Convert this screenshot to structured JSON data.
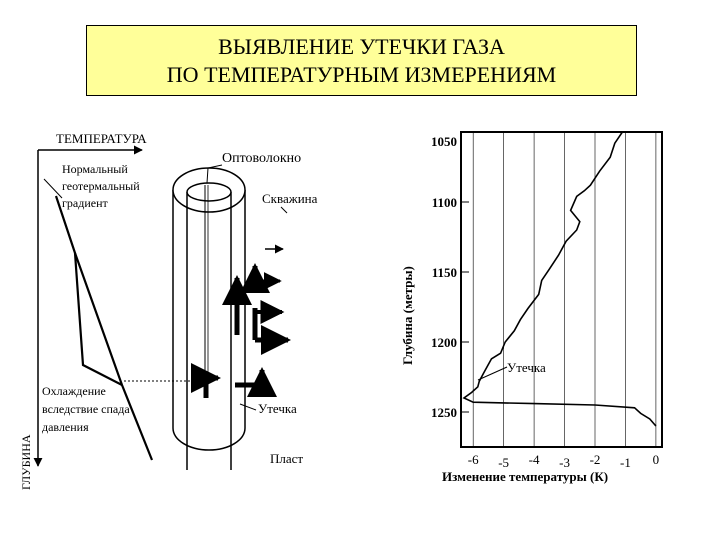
{
  "title": {
    "line1": "ВЫЯВЛЕНИЕ УТЕЧКИ ГАЗА",
    "line2": "ПО ТЕМПЕРАТУРНЫМ ИЗМЕРЕНИЯМ"
  },
  "left_diagram": {
    "axis_x_label": "ТЕМПЕРАТУРА",
    "axis_y_label": "ГЛУБИНА",
    "normal_gradient_lines": [
      "Нормальный",
      "геотермальный",
      "градиент"
    ],
    "cooling_lines": [
      "Охлаждение",
      "вследствие спада",
      "давления"
    ]
  },
  "well": {
    "fiber_label": "Оптоволокно",
    "borehole_label": "Скважина",
    "leak_label": "Утечка",
    "formation_label": "Пласт"
  },
  "chart_data": {
    "type": "line",
    "xlabel": "Изменение температуры  (К)",
    "ylabel": "Глубина   (метры)",
    "x_ticks": [
      "-6",
      "-5",
      "-4",
      "-3",
      "-2",
      "-1",
      "0"
    ],
    "y_ticks": [
      "1050",
      "1100",
      "1150",
      "1200",
      "1250"
    ],
    "xlim": [
      -6.4,
      0.2
    ],
    "ylim": [
      1050,
      1275
    ],
    "annotation": "Утечка",
    "grid": "vertical",
    "series": [
      {
        "x": [
          -1.1,
          -1.35,
          -1.5,
          -1.85,
          -2.15,
          -2.35,
          -2.6,
          -2.8,
          -2.5,
          -2.6,
          -2.95,
          -3.2,
          -3.5,
          -3.75,
          -3.85,
          -4.2,
          -4.45,
          -4.65,
          -4.95,
          -5.1,
          -5.4,
          -5.5,
          -5.65,
          -5.8,
          -5.85,
          -6.05,
          -6.3,
          -6.0,
          -4.0,
          -2.0,
          -0.7,
          -0.5,
          -0.2,
          0.0
        ],
        "y": [
          1050,
          1058,
          1068,
          1078,
          1088,
          1092,
          1096,
          1106,
          1114,
          1120,
          1128,
          1138,
          1148,
          1156,
          1166,
          1176,
          1184,
          1192,
          1200,
          1208,
          1212,
          1216,
          1222,
          1228,
          1232,
          1236,
          1240,
          1243,
          1244,
          1245,
          1247,
          1251,
          1255,
          1260
        ]
      }
    ]
  }
}
